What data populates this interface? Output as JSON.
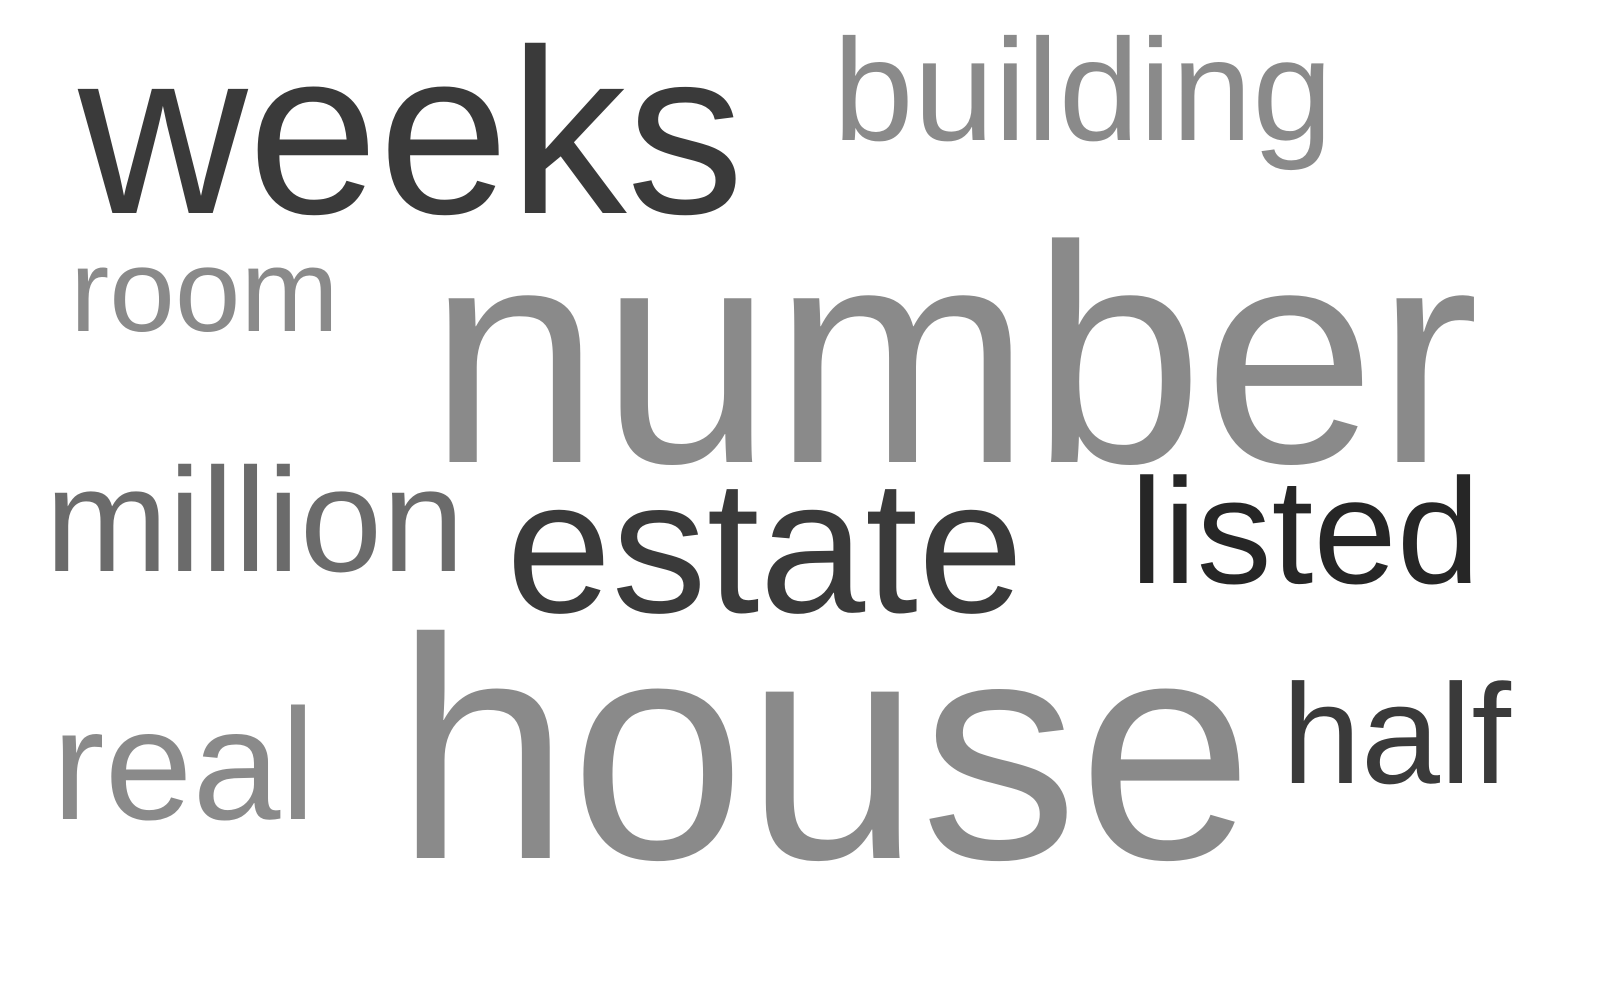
{
  "colors": {
    "dark": "#3a3a3a",
    "darker": "#262626",
    "mid": "#6b6b6b",
    "light": "#8a8a8a"
  },
  "words": {
    "weeks": "weeks",
    "building": "building",
    "room": "room",
    "number": "number",
    "million": "million",
    "estate": "estate",
    "listed": "listed",
    "real": "real",
    "house": "house",
    "half": "half"
  }
}
